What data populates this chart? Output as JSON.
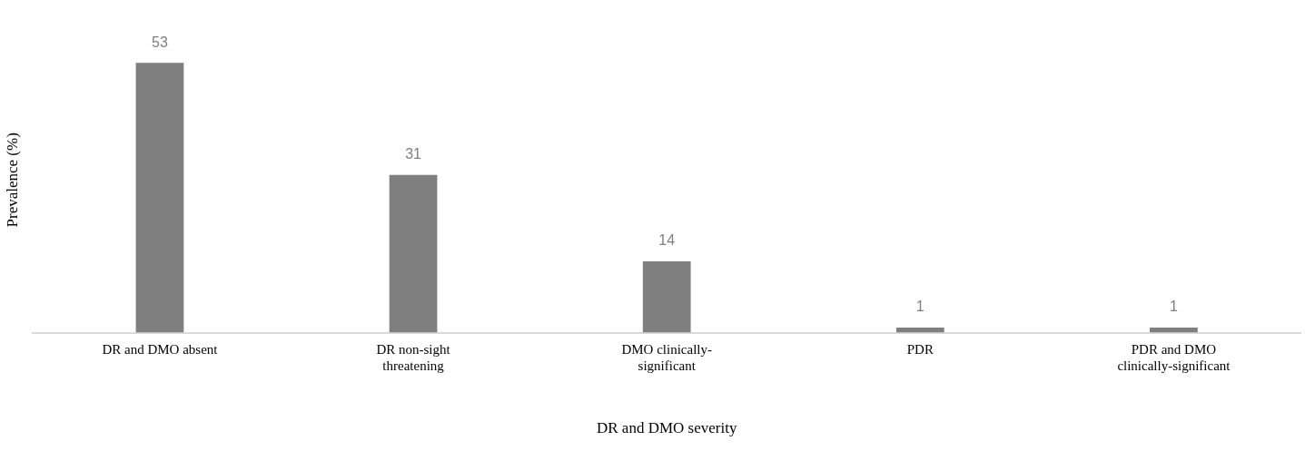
{
  "chart_data": {
    "type": "bar",
    "xlabel": "DR and DMO severity",
    "ylabel": "Prevalence (%)",
    "categories": [
      "DR and DMO absent",
      "DR non-sight threatening",
      "DMO clinically-significant",
      "PDR",
      "PDR and DMO clinically-significant"
    ],
    "values": [
      53,
      31,
      14,
      1,
      1
    ],
    "color": "#7f7f7f",
    "data_labels": true,
    "grid": false,
    "legend": false
  }
}
